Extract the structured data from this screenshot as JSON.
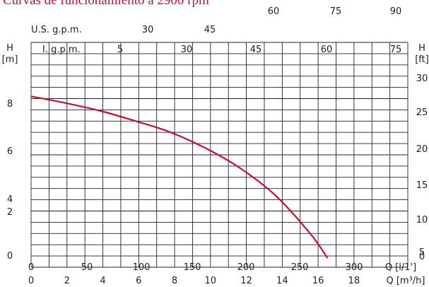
{
  "chart_data": {
    "type": "line",
    "title": "Curvas de funcionamiento a 2900 rpm",
    "usgpm_label": "U.S. g.p.m.",
    "igpm_label": "I. g.p.m.",
    "left_axis_label": [
      "H",
      "[m]"
    ],
    "right_axis_label": [
      "H",
      "[ft]"
    ],
    "q_lpm_label": "Q [l/1']",
    "q_m3h_label": "Q [m³/h]",
    "top_ticks": [
      "60",
      "75",
      "90"
    ],
    "usgpm_ticks": [
      "30",
      "45"
    ],
    "igpm_ticks": [
      "5",
      "30",
      "45",
      "60",
      "75"
    ],
    "left_ticks": [
      "8",
      "6",
      "4",
      "2",
      "0"
    ],
    "right_ticks": [
      "30",
      "25",
      "20",
      "15",
      "10",
      "5",
      "0"
    ],
    "lpm_ticks": [
      "0",
      "50",
      "100",
      "150",
      "200",
      "250",
      "300"
    ],
    "m3h_ticks": [
      "0",
      "2",
      "4",
      "6",
      "8",
      "10",
      "12",
      "14",
      "16",
      "18"
    ],
    "grid": true,
    "x_range_m3h": [
      0,
      21.6
    ],
    "y_range_m": [
      -0.2,
      9.8
    ],
    "series": [
      {
        "x_m3h": [
          0,
          2,
          4,
          6,
          8,
          10,
          12,
          14,
          16,
          17
        ],
        "y_m": [
          7.4,
          7.1,
          6.75,
          6.3,
          5.8,
          5.1,
          4.2,
          3.0,
          1.3,
          0.2
        ],
        "color": "#c8102e"
      }
    ]
  }
}
